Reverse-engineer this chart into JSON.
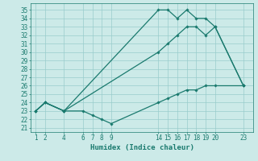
{
  "xlabel": "Humidex (Indice chaleur)",
  "bg_color": "#cceae8",
  "line_color": "#1a7a6e",
  "grid_color": "#99cccc",
  "lines": [
    {
      "x": [
        1,
        2,
        4,
        6,
        7,
        8,
        9,
        14,
        15,
        16,
        17,
        18,
        19,
        20,
        23
      ],
      "y": [
        23,
        24,
        23,
        23,
        22.5,
        22,
        21.5,
        24,
        24.5,
        25,
        25.5,
        25.5,
        26,
        26,
        26
      ]
    },
    {
      "x": [
        1,
        2,
        4,
        14,
        15,
        16,
        17,
        18,
        19,
        20,
        23
      ],
      "y": [
        23,
        24,
        23,
        30,
        31,
        32,
        33,
        33,
        32,
        33,
        26
      ]
    },
    {
      "x": [
        1,
        2,
        4,
        14,
        15,
        16,
        17,
        18,
        19,
        20,
        23
      ],
      "y": [
        23,
        24,
        23,
        35,
        35,
        34,
        35,
        34,
        34,
        33,
        26
      ]
    }
  ],
  "xticks": [
    1,
    2,
    4,
    6,
    7,
    8,
    9,
    14,
    15,
    16,
    17,
    18,
    19,
    20,
    23
  ],
  "yticks": [
    21,
    22,
    23,
    24,
    25,
    26,
    27,
    28,
    29,
    30,
    31,
    32,
    33,
    34,
    35
  ],
  "xlim": [
    0.5,
    24
  ],
  "ylim": [
    20.5,
    35.8
  ],
  "marker": "D",
  "marker_size": 1.8,
  "linewidth": 0.9,
  "tick_fontsize": 5.5,
  "xlabel_fontsize": 6.5
}
